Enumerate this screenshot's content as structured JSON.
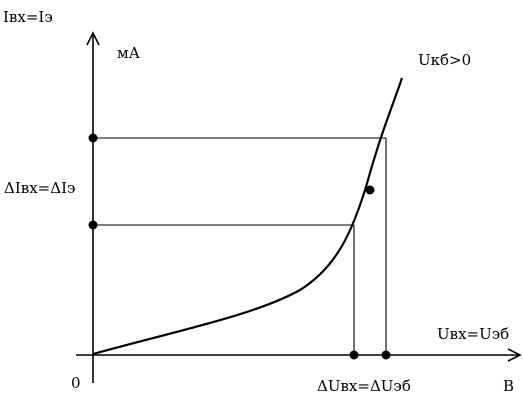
{
  "diagram": {
    "y_axis_label": "Iвх=Iэ",
    "y_unit": "мА",
    "x_axis_label": "Uвх=Uэб",
    "x_unit": "В",
    "origin_label": "0",
    "curve_label": "Uкб>0",
    "delta_current_label": "ΔIвх=ΔIэ",
    "delta_voltage_label": "ΔUвх=ΔUэб"
  }
}
